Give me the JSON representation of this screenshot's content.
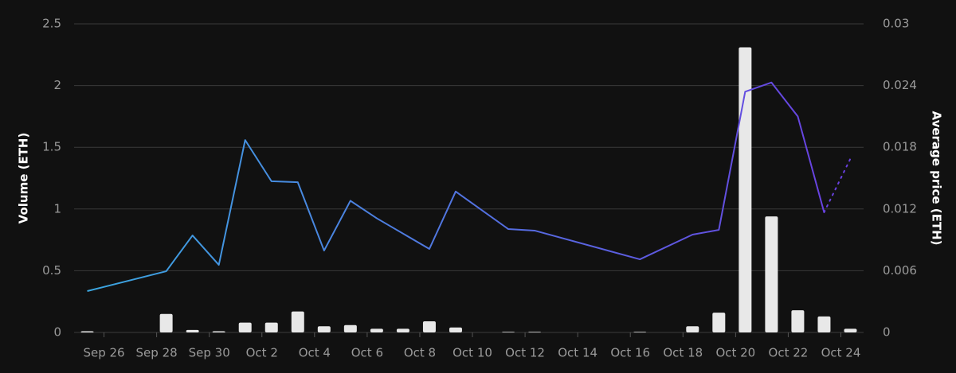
{
  "chart_data": {
    "type": "bar",
    "categories": [
      "Sep 25",
      "Sep 26",
      "Sep 27",
      "Sep 28",
      "Sep 29",
      "Sep 30",
      "Oct 1",
      "Oct 2",
      "Oct 3",
      "Oct 4",
      "Oct 5",
      "Oct 6",
      "Oct 7",
      "Oct 8",
      "Oct 9",
      "Oct 10",
      "Oct 11",
      "Oct 12",
      "Oct 13",
      "Oct 14",
      "Oct 15",
      "Oct 16",
      "Oct 17",
      "Oct 18",
      "Oct 19",
      "Oct 20",
      "Oct 21",
      "Oct 22",
      "Oct 23",
      "Oct 24"
    ],
    "xticks": [
      "Sep 26",
      "Sep 28",
      "Sep 30",
      "Oct 2",
      "Oct 4",
      "Oct 6",
      "Oct 8",
      "Oct 10",
      "Oct 12",
      "Oct 14",
      "Oct 16",
      "Oct 18",
      "Oct 20",
      "Oct 22",
      "Oct 24"
    ],
    "ylabel": "Volume (ETH)",
    "y2label": "Average price (ETH)",
    "ylim": [
      0,
      2.5
    ],
    "yticks": [
      0,
      0.5,
      1,
      1.5,
      2,
      2.5
    ],
    "y2lim": [
      0,
      0.03
    ],
    "y2ticks": [
      0,
      0.006,
      0.012,
      0.018,
      0.024,
      0.03
    ],
    "grid": true,
    "series": [
      {
        "type": "bar",
        "color": "#e8e8e8",
        "axis": "y",
        "values": [
          0.01,
          0,
          0,
          0.15,
          0.02,
          0.01,
          0.08,
          0.08,
          0.17,
          0.05,
          0.06,
          0.03,
          0.03,
          0.09,
          0.04,
          0,
          0.005,
          0.005,
          0,
          0,
          0,
          0.005,
          0,
          0.05,
          0.16,
          2.31,
          0.94,
          0.18,
          0.13,
          0.03
        ]
      },
      {
        "type": "line",
        "axis": "y2",
        "color": [
          "#3aa8e0",
          "#6a3de0"
        ],
        "last_segment_dotted": true,
        "x": [
          "Sep 25",
          "Sep 28",
          "Sep 29",
          "Sep 30",
          "Oct 1",
          "Oct 2",
          "Oct 3",
          "Oct 4",
          "Oct 5",
          "Oct 6",
          "Oct 8",
          "Oct 9",
          "Oct 11",
          "Oct 12",
          "Oct 16",
          "Oct 18",
          "Oct 19",
          "Oct 20",
          "Oct 21",
          "Oct 22",
          "Oct 23",
          "Oct 24"
        ],
        "values": [
          0.00402,
          0.00595,
          0.00943,
          0.00657,
          0.0187,
          0.0147,
          0.0146,
          0.00796,
          0.0128,
          0.0111,
          0.00812,
          0.0137,
          0.01005,
          0.0099,
          0.00711,
          0.00951,
          0.00997,
          0.0234,
          0.0243,
          0.021,
          0.01168,
          0.0169
        ]
      }
    ]
  }
}
